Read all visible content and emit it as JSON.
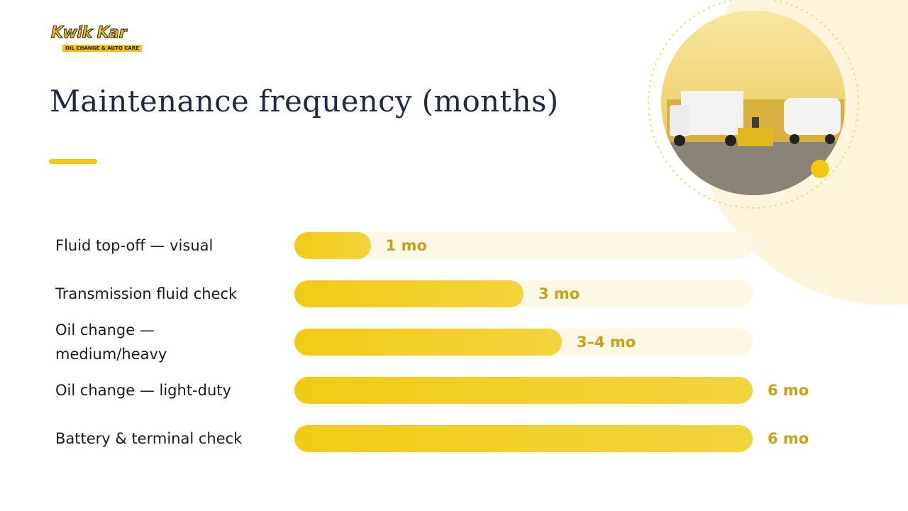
{
  "logo": {
    "name": "Kwik Kar",
    "tagline": "OIL CHANGE & AUTO CARE"
  },
  "chart_data": {
    "type": "bar",
    "orientation": "horizontal",
    "title": "Maintenance frequency (months)",
    "categories": [
      "Fluid top-off — visual",
      "Transmission fluid check",
      "Oil change — medium/heavy",
      "Oil change — light-duty",
      "Battery & terminal check"
    ],
    "values": [
      1,
      3,
      3.5,
      6,
      6
    ],
    "value_labels": [
      "1 mo",
      "3 mo",
      "3–4 mo",
      "6 mo",
      "6 mo"
    ],
    "color": "#f2cb14"
  }
}
